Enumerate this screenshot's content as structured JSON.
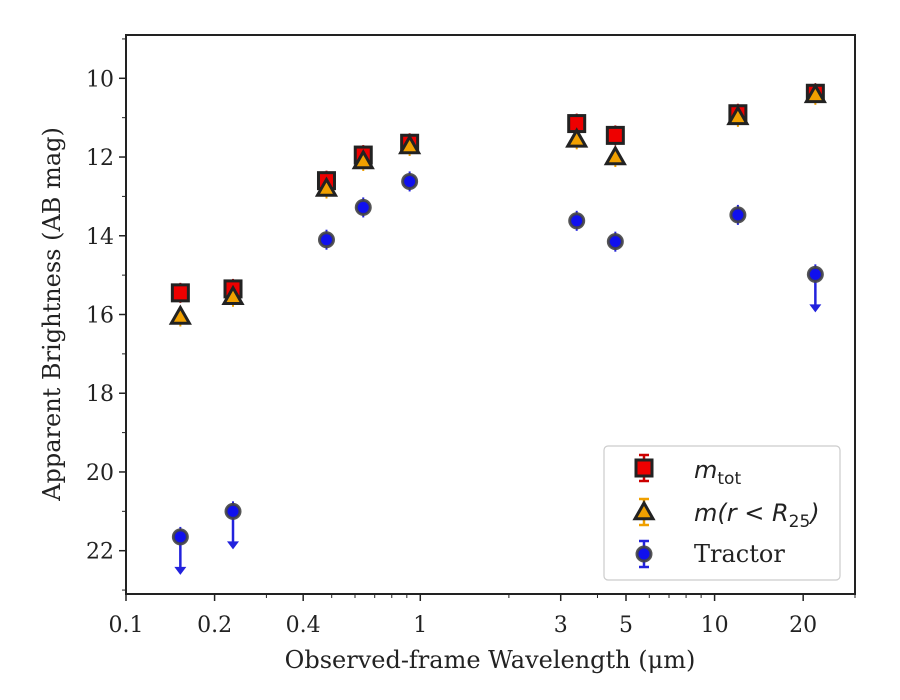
{
  "chart_data": {
    "type": "scatter",
    "xlabel": "Observed-frame Wavelength (μm)",
    "ylabel": "Apparent Brightness (AB mag)",
    "xscale": "log",
    "xlim": [
      0.1,
      30
    ],
    "ylim": [
      23.1,
      8.9
    ],
    "y_inverted": true,
    "grid": false,
    "legend_position": "bottom-right",
    "x_ticks": [
      0.1,
      0.2,
      0.4,
      1,
      3,
      5,
      10,
      20
    ],
    "x_tick_labels": [
      "0.1",
      "0.2",
      "0.4",
      "1",
      "3",
      "5",
      "10",
      "20"
    ],
    "y_ticks": [
      10,
      12,
      14,
      16,
      18,
      20,
      22
    ],
    "y_tick_labels": [
      "10",
      "12",
      "14",
      "16",
      "18",
      "20",
      "22"
    ],
    "series": [
      {
        "name": "m_tot",
        "legend_label": "m_tot",
        "marker": "square",
        "color": "#ee0000",
        "edge_color": "#222222",
        "errorbar_color": "#cc0000",
        "points": [
          {
            "x": 0.153,
            "y": 15.45
          },
          {
            "x": 0.231,
            "y": 15.35
          },
          {
            "x": 0.48,
            "y": 12.6
          },
          {
            "x": 0.64,
            "y": 11.95
          },
          {
            "x": 0.92,
            "y": 11.65
          },
          {
            "x": 3.4,
            "y": 11.15
          },
          {
            "x": 4.6,
            "y": 11.45
          },
          {
            "x": 12.0,
            "y": 10.9
          },
          {
            "x": 22.0,
            "y": 10.38
          }
        ]
      },
      {
        "name": "m(r<R25)",
        "legend_label": "m(r < R25)",
        "marker": "triangle",
        "color": "#f0a000",
        "edge_color": "#222222",
        "errorbar_color": "#f0a000",
        "points": [
          {
            "x": 0.153,
            "y": 16.05
          },
          {
            "x": 0.231,
            "y": 15.55
          },
          {
            "x": 0.48,
            "y": 12.8
          },
          {
            "x": 0.64,
            "y": 12.1
          },
          {
            "x": 0.92,
            "y": 11.72
          },
          {
            "x": 3.4,
            "y": 11.55
          },
          {
            "x": 4.6,
            "y": 12.0
          },
          {
            "x": 12.0,
            "y": 10.98
          },
          {
            "x": 22.0,
            "y": 10.42
          }
        ]
      },
      {
        "name": "Tractor",
        "legend_label": "Tractor",
        "marker": "circle",
        "color": "#1010ee",
        "edge_color": "#444444",
        "errorbar_color": "#2222dd",
        "points": [
          {
            "x": 0.153,
            "y": 21.65,
            "upper_limit": true
          },
          {
            "x": 0.231,
            "y": 21.0,
            "upper_limit": true
          },
          {
            "x": 0.48,
            "y": 14.1
          },
          {
            "x": 0.64,
            "y": 13.28
          },
          {
            "x": 0.92,
            "y": 12.62
          },
          {
            "x": 3.4,
            "y": 13.62
          },
          {
            "x": 4.6,
            "y": 14.15
          },
          {
            "x": 12.0,
            "y": 13.47
          },
          {
            "x": 22.0,
            "y": 14.98,
            "upper_limit": true
          }
        ]
      }
    ]
  },
  "legend": {
    "items": [
      {
        "main": "m",
        "sub": "tot"
      },
      {
        "prefix": "m(r < R",
        "sub": "25",
        "suffix": ")"
      },
      {
        "text": "Tractor"
      }
    ]
  }
}
